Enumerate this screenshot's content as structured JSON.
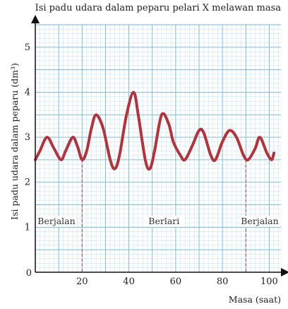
{
  "chart_data": {
    "type": "line",
    "title": "Isi padu udara dalam peparu pelari X melawan masa",
    "xlabel": "Masa (saat)",
    "ylabel": "Isi padu udara dalam peparu (dm³)",
    "xlim": [
      0,
      105
    ],
    "ylim": [
      0,
      5.5
    ],
    "x_ticks": [
      "20",
      "40",
      "60",
      "80",
      "100"
    ],
    "y_ticks": [
      "1",
      "2",
      "3",
      "4",
      "5"
    ],
    "origin_label": "0",
    "grid": true,
    "regions": [
      {
        "label": "Berjalan",
        "start": 0,
        "end": 20
      },
      {
        "label": "Berlari",
        "start": 20,
        "end": 90
      },
      {
        "label": "Berjalan",
        "start": 90,
        "end": 105
      }
    ],
    "markers_x": [
      20,
      90
    ],
    "series": [
      {
        "color": "#b5323a",
        "x": [
          0,
          2,
          5,
          8,
          11,
          13,
          16,
          18,
          20,
          22,
          24,
          26,
          29,
          32,
          34,
          36,
          39,
          42,
          44,
          47,
          49,
          51,
          54,
          57,
          59,
          62,
          64,
          67,
          70,
          72,
          75,
          77,
          80,
          83,
          86,
          89,
          91,
          94,
          96,
          99,
          101,
          102
        ],
        "y": [
          2.5,
          2.7,
          3.0,
          2.75,
          2.5,
          2.7,
          3.0,
          2.8,
          2.5,
          2.7,
          3.2,
          3.5,
          3.2,
          2.5,
          2.3,
          2.6,
          3.5,
          4.0,
          3.5,
          2.5,
          2.3,
          2.7,
          3.5,
          3.3,
          2.9,
          2.6,
          2.5,
          2.8,
          3.15,
          3.1,
          2.6,
          2.5,
          2.9,
          3.15,
          3.0,
          2.6,
          2.5,
          2.75,
          3.0,
          2.65,
          2.5,
          2.65
        ]
      }
    ]
  }
}
